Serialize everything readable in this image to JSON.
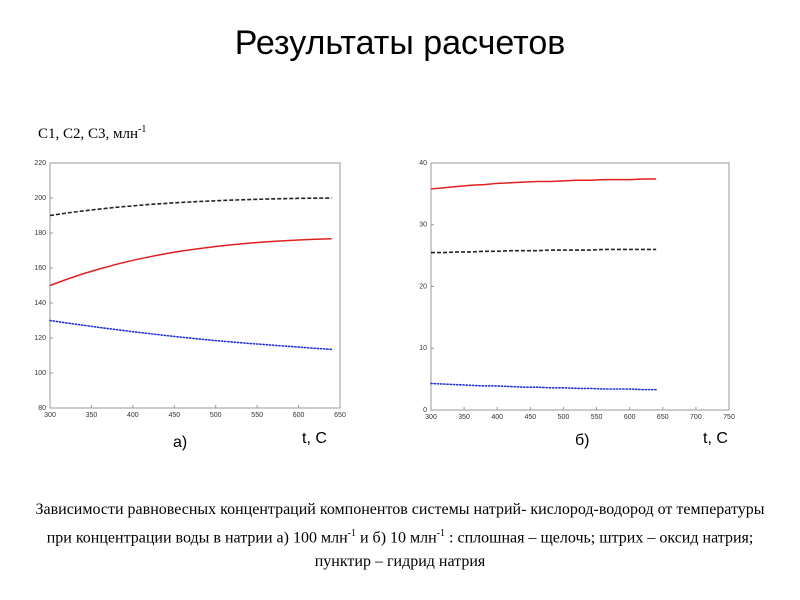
{
  "title": "Результаты расчетов",
  "y_label": "С1, С2, С3, млн",
  "y_label_sup": "-1",
  "caption_parts": [
    "Зависимости равновесных концентраций компонентов системы натрий- кислород-водород от температуры при концентрации воды в натрии а) 100 млн",
    "-1",
    " и б) 10 млн",
    "-1",
    " : сплошная – щелочь; штрих – оксид натрия; пунктир – гидрид натрия"
  ],
  "chart_data": [
    {
      "type": "line",
      "panel_label": "а)",
      "x_label": "t, C",
      "x": [
        300,
        320,
        340,
        360,
        380,
        400,
        420,
        440,
        460,
        480,
        500,
        520,
        540,
        560,
        580,
        600,
        620,
        640
      ],
      "xlim": [
        300,
        650
      ],
      "xticks": [
        300,
        350,
        400,
        450,
        500,
        550,
        600,
        650
      ],
      "ylim": [
        80,
        220
      ],
      "yticks": [
        80,
        100,
        120,
        140,
        160,
        180,
        200,
        220
      ],
      "grid": false,
      "series": [
        {
          "color": "#e02020",
          "style": "solid",
          "values": [
            150,
            153.5,
            156.7,
            159.5,
            162.1,
            164.4,
            166.4,
            168.2,
            169.8,
            171.1,
            172.3,
            173.3,
            174.2,
            174.9,
            175.5,
            176,
            176.4,
            176.7
          ]
        },
        {
          "color": "#222222",
          "style": "dashed",
          "values": [
            190,
            191.4,
            192.6,
            193.7,
            194.7,
            195.5,
            196.3,
            196.9,
            197.5,
            198,
            198.4,
            198.8,
            199.1,
            199.4,
            199.6,
            199.8,
            199.9,
            200
          ]
        },
        {
          "color": "#2030d0",
          "style": "dotted",
          "values": [
            130,
            128.6,
            127.3,
            126,
            124.8,
            123.6,
            122.5,
            121.4,
            120.4,
            119.4,
            118.5,
            117.7,
            116.9,
            116.2,
            115.5,
            114.8,
            114.1,
            113.5
          ]
        }
      ]
    },
    {
      "type": "line",
      "panel_label": "б)",
      "x_label": "t, C",
      "x": [
        300,
        320,
        340,
        360,
        380,
        400,
        420,
        440,
        460,
        480,
        500,
        520,
        540,
        560,
        580,
        600,
        620,
        640
      ],
      "xlim": [
        300,
        750
      ],
      "xticks": [
        300,
        350,
        400,
        450,
        500,
        550,
        600,
        650,
        700,
        750
      ],
      "ylim": [
        0,
        40
      ],
      "yticks": [
        0,
        10,
        20,
        30,
        40
      ],
      "grid": false,
      "series": [
        {
          "color": "#e02020",
          "style": "solid",
          "values": [
            35.8,
            36,
            36.2,
            36.4,
            36.5,
            36.7,
            36.8,
            36.9,
            37,
            37,
            37.1,
            37.2,
            37.2,
            37.3,
            37.3,
            37.3,
            37.4,
            37.4
          ]
        },
        {
          "color": "#222222",
          "style": "dashed",
          "values": [
            25.5,
            25.5,
            25.6,
            25.6,
            25.7,
            25.7,
            25.8,
            25.8,
            25.8,
            25.9,
            25.9,
            25.9,
            25.9,
            26,
            26,
            26,
            26,
            26
          ]
        },
        {
          "color": "#2030d0",
          "style": "dotted",
          "values": [
            4.3,
            4.2,
            4.1,
            4,
            3.9,
            3.9,
            3.8,
            3.7,
            3.7,
            3.6,
            3.6,
            3.5,
            3.5,
            3.4,
            3.4,
            3.4,
            3.3,
            3.3
          ]
        }
      ]
    }
  ]
}
